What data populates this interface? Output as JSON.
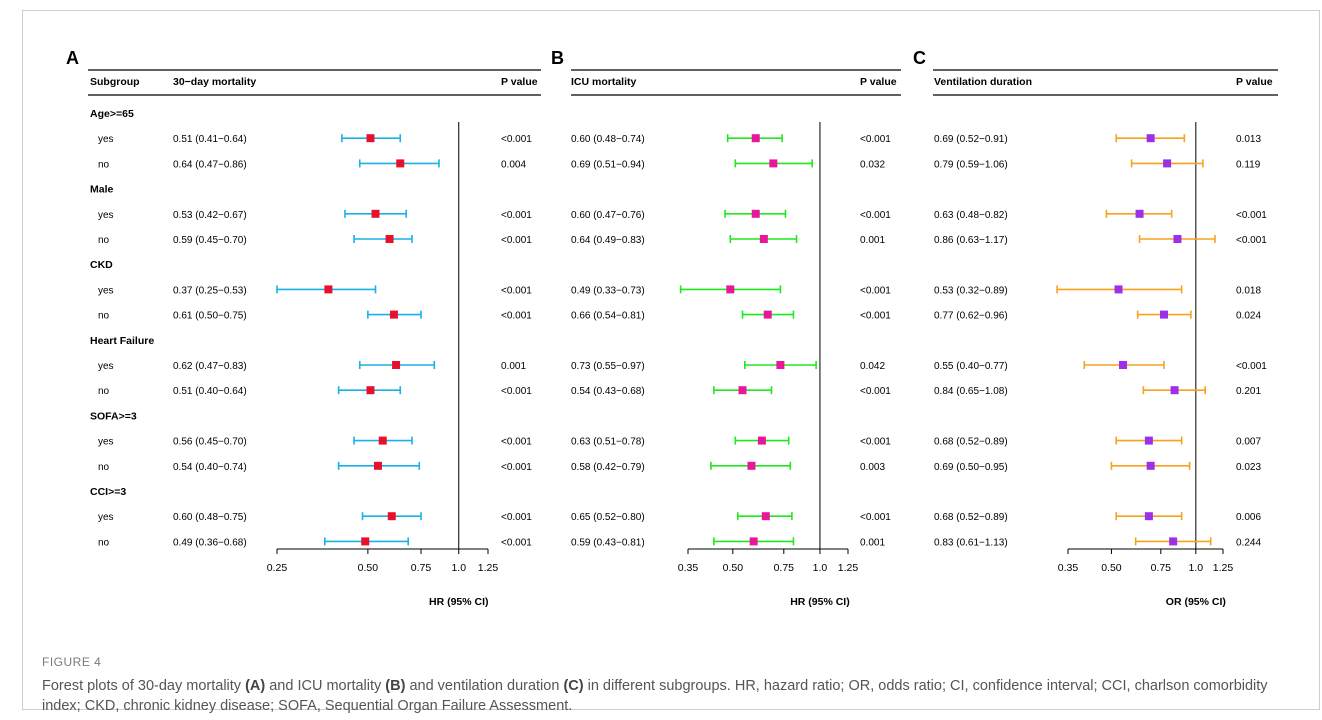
{
  "figure_label": "FIGURE 4",
  "caption": {
    "p1": "Forest plots of 30-day mortality ",
    "bA": "(A)",
    "p2": " and ICU mortality ",
    "bB": "(B)",
    "p3": " and ventilation duration ",
    "bC": "(C)",
    "p4": " in different subgroups. HR, hazard ratio; OR, odds ratio; CI, confidence interval; CCI, charlson comorbidity index; CKD, chronic kidney disease; SOFA, Sequential Organ Failure Assessment."
  },
  "subgroup_header": "Subgroup",
  "chart_data": [
    {
      "type": "forest",
      "panel": "A",
      "header": "30−day mortality",
      "pvalue_header": "P value",
      "xlabel": "HR (95% CI)",
      "scale": "log",
      "xlim": [
        0.25,
        1.25
      ],
      "xticks": [
        0.25,
        0.5,
        0.75,
        1.0,
        1.25
      ],
      "xtick_labels": [
        "0.25",
        "0.50",
        "0.75",
        "1.0",
        "1.25"
      ],
      "reference_line": 1.0,
      "colors": {
        "marker": "#e8112d",
        "ci": "#1ab0e8"
      },
      "groups": [
        {
          "name": "Age>=65",
          "rows": [
            {
              "label": "yes",
              "text": "0.51 (0.41−0.64)",
              "est": 0.51,
              "lo": 0.41,
              "hi": 0.64,
              "p": "<0.001"
            },
            {
              "label": "no",
              "text": "0.64 (0.47−0.86)",
              "est": 0.64,
              "lo": 0.47,
              "hi": 0.86,
              "p": "0.004"
            }
          ]
        },
        {
          "name": "Male",
          "rows": [
            {
              "label": "yes",
              "text": "0.53 (0.42−0.67)",
              "est": 0.53,
              "lo": 0.42,
              "hi": 0.67,
              "p": "<0.001"
            },
            {
              "label": "no",
              "text": "0.59 (0.45−0.70)",
              "est": 0.59,
              "lo": 0.45,
              "hi": 0.7,
              "p": "<0.001"
            }
          ]
        },
        {
          "name": "CKD",
          "rows": [
            {
              "label": "yes",
              "text": "0.37 (0.25−0.53)",
              "est": 0.37,
              "lo": 0.25,
              "hi": 0.53,
              "p": "<0.001"
            },
            {
              "label": "no",
              "text": "0.61 (0.50−0.75)",
              "est": 0.61,
              "lo": 0.5,
              "hi": 0.75,
              "p": "<0.001"
            }
          ]
        },
        {
          "name": "Heart Failure",
          "rows": [
            {
              "label": "yes",
              "text": "0.62 (0.47−0.83)",
              "est": 0.62,
              "lo": 0.47,
              "hi": 0.83,
              "p": "0.001"
            },
            {
              "label": "no",
              "text": "0.51 (0.40−0.64)",
              "est": 0.51,
              "lo": 0.4,
              "hi": 0.64,
              "p": "<0.001"
            }
          ]
        },
        {
          "name": "SOFA>=3",
          "rows": [
            {
              "label": "yes",
              "text": "0.56 (0.45−0.70)",
              "est": 0.56,
              "lo": 0.45,
              "hi": 0.7,
              "p": "<0.001"
            },
            {
              "label": "no",
              "text": "0.54 (0.40−0.74)",
              "est": 0.54,
              "lo": 0.4,
              "hi": 0.74,
              "p": "<0.001"
            }
          ]
        },
        {
          "name": "CCI>=3",
          "rows": [
            {
              "label": "yes",
              "text": "0.60 (0.48−0.75)",
              "est": 0.6,
              "lo": 0.48,
              "hi": 0.75,
              "p": "<0.001"
            },
            {
              "label": "no",
              "text": "0.49 (0.36−0.68)",
              "est": 0.49,
              "lo": 0.36,
              "hi": 0.68,
              "p": "<0.001"
            }
          ]
        }
      ]
    },
    {
      "type": "forest",
      "panel": "B",
      "header": "ICU mortality",
      "pvalue_header": "P value",
      "xlabel": "HR (95% CI)",
      "scale": "log",
      "xlim": [
        0.35,
        1.25
      ],
      "xticks": [
        0.35,
        0.5,
        0.75,
        1.0,
        1.25
      ],
      "xtick_labels": [
        "0.35",
        "0.50",
        "0.75",
        "1.0",
        "1.25"
      ],
      "reference_line": 1.0,
      "colors": {
        "marker": "#e8179a",
        "ci": "#1ee81e"
      },
      "groups": [
        {
          "name": "Age>=65",
          "rows": [
            {
              "label": "yes",
              "text": "0.60 (0.48−0.74)",
              "est": 0.6,
              "lo": 0.48,
              "hi": 0.74,
              "p": "<0.001"
            },
            {
              "label": "no",
              "text": "0.69 (0.51−0.94)",
              "est": 0.69,
              "lo": 0.51,
              "hi": 0.94,
              "p": "0.032"
            }
          ]
        },
        {
          "name": "Male",
          "rows": [
            {
              "label": "yes",
              "text": "0.60 (0.47−0.76)",
              "est": 0.6,
              "lo": 0.47,
              "hi": 0.76,
              "p": "<0.001"
            },
            {
              "label": "no",
              "text": "0.64 (0.49−0.83)",
              "est": 0.64,
              "lo": 0.49,
              "hi": 0.83,
              "p": "0.001"
            }
          ]
        },
        {
          "name": "CKD",
          "rows": [
            {
              "label": "yes",
              "text": "0.49 (0.33−0.73)",
              "est": 0.49,
              "lo": 0.33,
              "hi": 0.73,
              "p": "<0.001"
            },
            {
              "label": "no",
              "text": "0.66 (0.54−0.81)",
              "est": 0.66,
              "lo": 0.54,
              "hi": 0.81,
              "p": "<0.001"
            }
          ]
        },
        {
          "name": "Heart Failure",
          "rows": [
            {
              "label": "yes",
              "text": "0.73 (0.55−0.97)",
              "est": 0.73,
              "lo": 0.55,
              "hi": 0.97,
              "p": "0.042"
            },
            {
              "label": "no",
              "text": "0.54 (0.43−0.68)",
              "est": 0.54,
              "lo": 0.43,
              "hi": 0.68,
              "p": "<0.001"
            }
          ]
        },
        {
          "name": "SOFA>=3",
          "rows": [
            {
              "label": "yes",
              "text": "0.63 (0.51−0.78)",
              "est": 0.63,
              "lo": 0.51,
              "hi": 0.78,
              "p": "<0.001"
            },
            {
              "label": "no",
              "text": "0.58 (0.42−0.79)",
              "est": 0.58,
              "lo": 0.42,
              "hi": 0.79,
              "p": "0.003"
            }
          ]
        },
        {
          "name": "CCI>=3",
          "rows": [
            {
              "label": "yes",
              "text": "0.65 (0.52−0.80)",
              "est": 0.65,
              "lo": 0.52,
              "hi": 0.8,
              "p": "<0.001"
            },
            {
              "label": "no",
              "text": "0.59 (0.43−0.81)",
              "est": 0.59,
              "lo": 0.43,
              "hi": 0.81,
              "p": "0.001"
            }
          ]
        }
      ]
    },
    {
      "type": "forest",
      "panel": "C",
      "header": "Ventilation duration",
      "pvalue_header": "P value",
      "xlabel": "OR (95% CI)",
      "scale": "log",
      "xlim": [
        0.35,
        1.25
      ],
      "xticks": [
        0.35,
        0.5,
        0.75,
        1.0,
        1.25
      ],
      "xtick_labels": [
        "0.35",
        "0.50",
        "0.75",
        "1.0",
        "1.25"
      ],
      "reference_line": 1.0,
      "colors": {
        "marker": "#9b30e8",
        "ci": "#f5a21e"
      },
      "groups": [
        {
          "name": "Age>=65",
          "rows": [
            {
              "label": "yes",
              "text": "0.69 (0.52−0.91)",
              "est": 0.69,
              "lo": 0.52,
              "hi": 0.91,
              "p": "0.013"
            },
            {
              "label": "no",
              "text": "0.79 (0.59−1.06)",
              "est": 0.79,
              "lo": 0.59,
              "hi": 1.06,
              "p": "0.119"
            }
          ]
        },
        {
          "name": "Male",
          "rows": [
            {
              "label": "yes",
              "text": "0.63 (0.48−0.82)",
              "est": 0.63,
              "lo": 0.48,
              "hi": 0.82,
              "p": "<0.001"
            },
            {
              "label": "no",
              "text": "0.86 (0.63−1.17)",
              "est": 0.86,
              "lo": 0.63,
              "hi": 1.17,
              "p": "<0.001"
            }
          ]
        },
        {
          "name": "CKD",
          "rows": [
            {
              "label": "yes",
              "text": "0.53 (0.32−0.89)",
              "est": 0.53,
              "lo": 0.32,
              "hi": 0.89,
              "p": "0.018"
            },
            {
              "label": "no",
              "text": "0.77 (0.62−0.96)",
              "est": 0.77,
              "lo": 0.62,
              "hi": 0.96,
              "p": "0.024"
            }
          ]
        },
        {
          "name": "Heart Failure",
          "rows": [
            {
              "label": "yes",
              "text": "0.55 (0.40−0.77)",
              "est": 0.55,
              "lo": 0.4,
              "hi": 0.77,
              "p": "<0.001"
            },
            {
              "label": "no",
              "text": "0.84 (0.65−1.08)",
              "est": 0.84,
              "lo": 0.65,
              "hi": 1.08,
              "p": "0.201"
            }
          ]
        },
        {
          "name": "SOFA>=3",
          "rows": [
            {
              "label": "yes",
              "text": "0.68 (0.52−0.89)",
              "est": 0.68,
              "lo": 0.52,
              "hi": 0.89,
              "p": "0.007"
            },
            {
              "label": "no",
              "text": "0.69 (0.50−0.95)",
              "est": 0.69,
              "lo": 0.5,
              "hi": 0.95,
              "p": "0.023"
            }
          ]
        },
        {
          "name": "CCI>=3",
          "rows": [
            {
              "label": "yes",
              "text": "0.68 (0.52−0.89)",
              "est": 0.68,
              "lo": 0.52,
              "hi": 0.89,
              "p": "0.006"
            },
            {
              "label": "no",
              "text": "0.83 (0.61−1.13)",
              "est": 0.83,
              "lo": 0.61,
              "hi": 1.13,
              "p": "0.244"
            }
          ]
        }
      ]
    }
  ]
}
